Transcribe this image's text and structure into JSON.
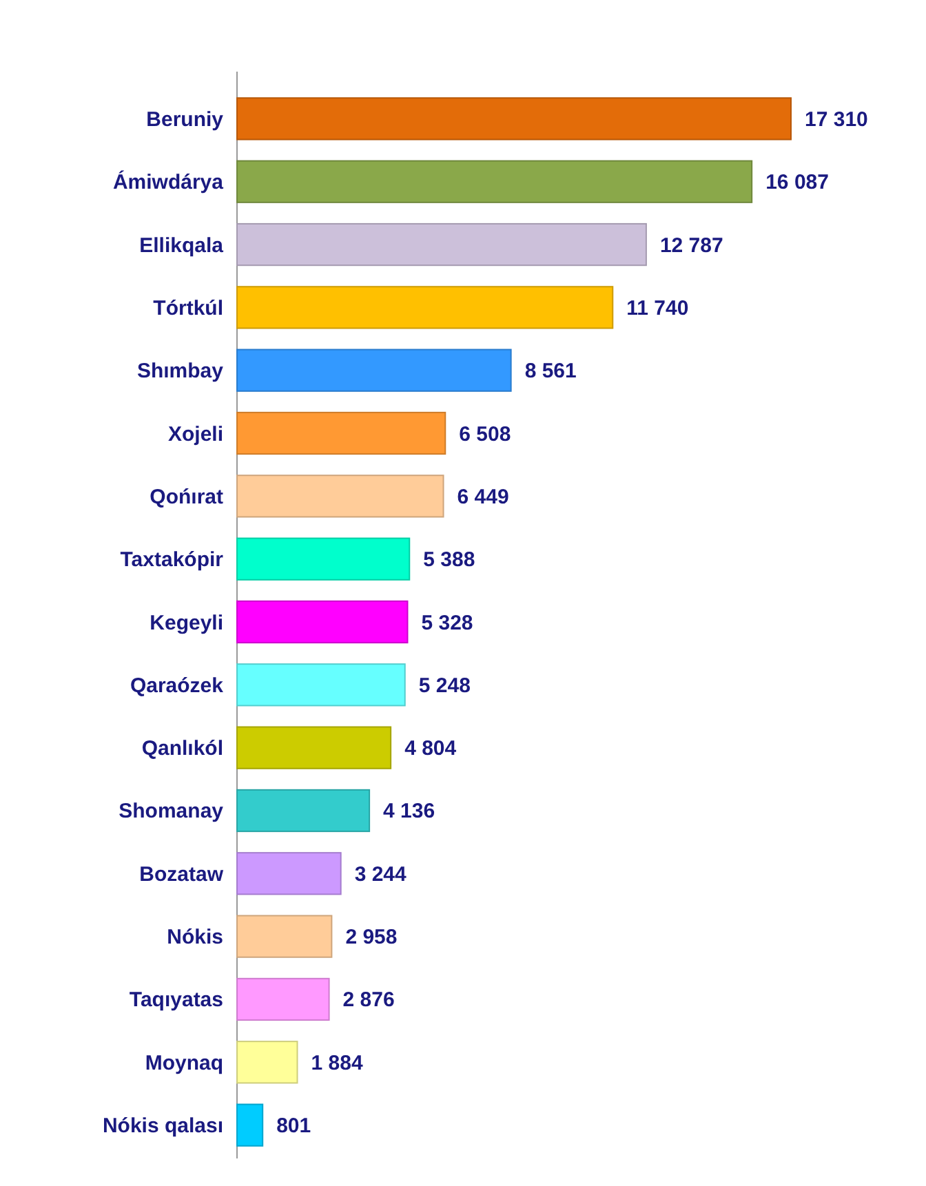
{
  "chart_data": {
    "type": "bar",
    "orientation": "horizontal",
    "categories": [
      "Beruniy",
      "Ámiwdárya",
      "Ellikqala",
      "Tórtkúl",
      "Shımbay",
      "Xojeli",
      "Qońırat",
      "Taxtakópir",
      "Kegeyli",
      "Qaraózek",
      "Qanlıkól",
      "Shomanay",
      "Bozataw",
      "Nókis",
      "Taqıyatas",
      "Moynaq",
      "Nókis qalası"
    ],
    "values": [
      17310,
      16087,
      12787,
      11740,
      8561,
      6508,
      6449,
      5388,
      5328,
      5248,
      4804,
      4136,
      3244,
      2958,
      2876,
      1884,
      801
    ],
    "value_labels": [
      "17 310",
      "16 087",
      "12 787",
      "11 740",
      "8 561",
      "6 508",
      "6 449",
      "5 388",
      "5 328",
      "5 248",
      "4 804",
      "4 136",
      "3 244",
      "2 958",
      "2 876",
      "1 884",
      "801"
    ],
    "colors": [
      "#e36c09",
      "#8aa84a",
      "#ccc0da",
      "#ffc000",
      "#3399ff",
      "#ff9933",
      "#ffcc99",
      "#00ffcc",
      "#ff00ff",
      "#66ffff",
      "#cccc00",
      "#33cccc",
      "#cc99ff",
      "#ffcc99",
      "#ff99ff",
      "#ffff99",
      "#00ccff"
    ]
  }
}
